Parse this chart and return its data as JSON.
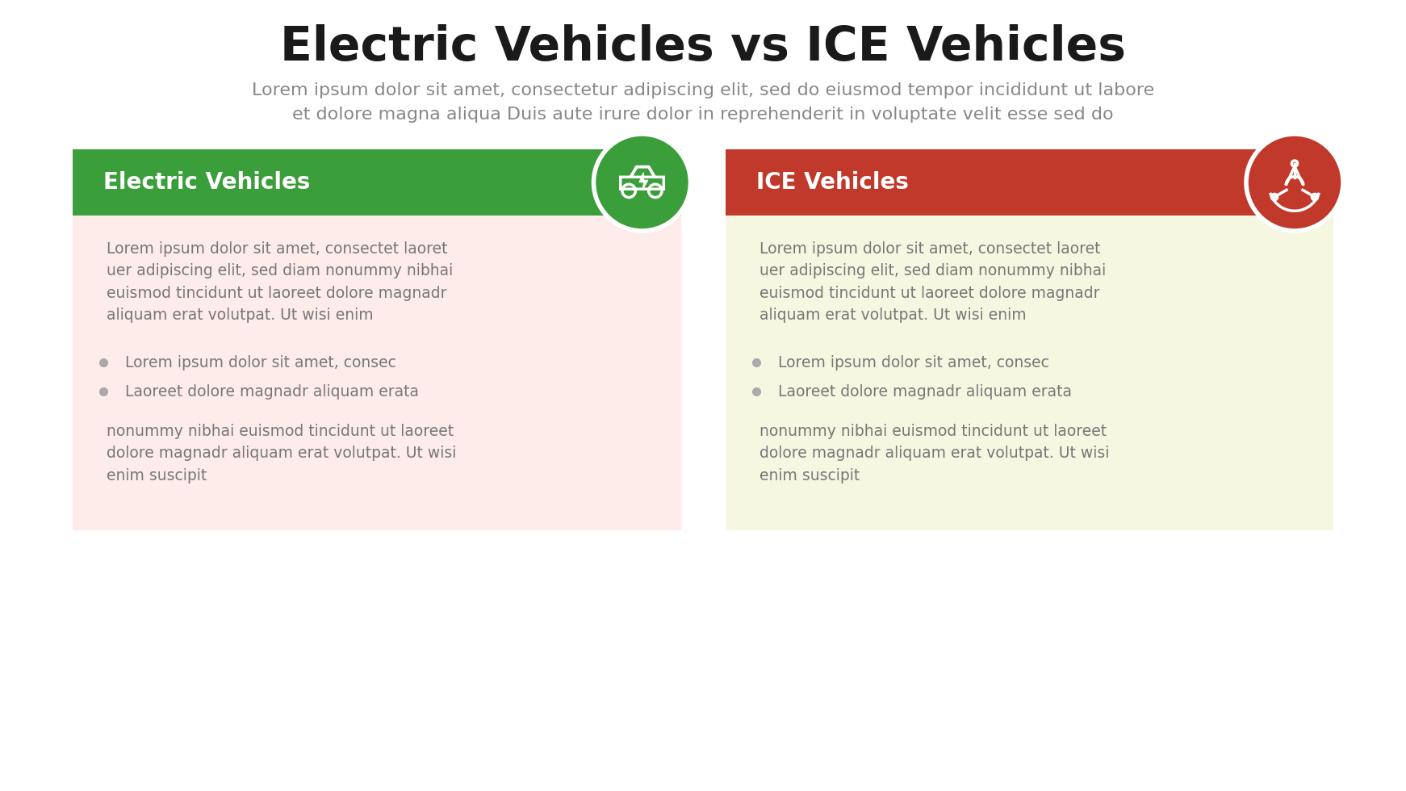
{
  "title": "Electric Vehicles vs ICE Vehicles",
  "subtitle_line1": "Lorem ipsum dolor sit amet, consectetur adipiscing elit, sed do eiusmod tempor incididunt ut labore",
  "subtitle_line2": "et dolore magna aliqua Duis aute irure dolor in reprehenderit in voluptate velit esse sed do",
  "title_color": "#1a1a1a",
  "subtitle_color": "#888888",
  "bg_color": "#ffffff",
  "left_header": "Electric Vehicles",
  "left_header_bg": "#3a9e3a",
  "left_body_bg": "#fdecea",
  "left_circle_color": "#3a9e3a",
  "right_header": "ICE Vehicles",
  "right_header_bg": "#c0392b",
  "right_body_bg": "#f5f7e0",
  "right_circle_color": "#c0392b",
  "body_text": "Lorem ipsum dolor sit amet, consectet laoret\nuer adipiscing elit, sed diam nonummy nibhai\neuismod tincidunt ut laoreet dolore magnadr\naliquam erat volutpat. Ut wisi enim",
  "bullet1": "Lorem ipsum dolor sit amet, consec",
  "bullet2": "Laoreet dolore magnadr aliquam erata",
  "footer_text": "nonummy nibhai euismod tincidunt ut laoreet\ndolore magnadr aliquam erat volutpat. Ut wisi\nenim suscipit",
  "text_color": "#777777",
  "bullet_dot_color": "#aaaaaa",
  "header_text_color": "#ffffff",
  "header_font_size": 20,
  "body_font_size": 13.5,
  "title_font_size": 42,
  "subtitle_font_size": 16
}
